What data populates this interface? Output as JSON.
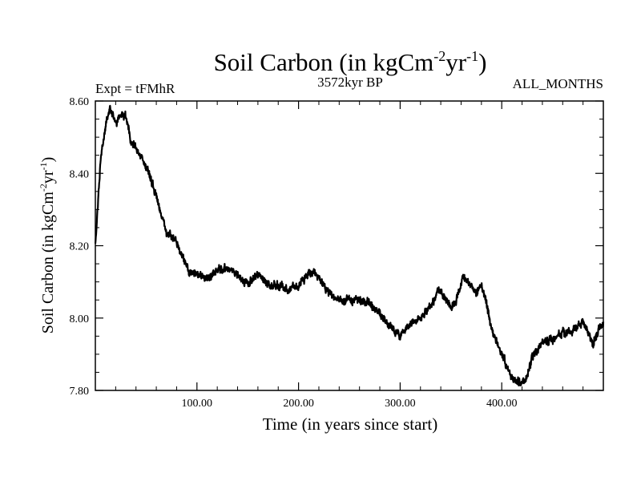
{
  "chart_data": {
    "type": "line",
    "title": "Soil Carbon (in kgCm",
    "title_exp1": "-2",
    "title_mid": "yr",
    "title_exp2": "-1",
    "title_end": ")",
    "subtitle_left": "Expt = tFMhR",
    "subtitle_center": "3572kyr BP",
    "subtitle_right": "ALL_MONTHS",
    "xlabel": "Time (in years since start)",
    "ylabel": "Soil Carbon (in kgCm",
    "ylabel_exp1": "-2",
    "ylabel_mid": "yr",
    "ylabel_exp2": "-1",
    "ylabel_end": ")",
    "xlim": [
      0,
      500
    ],
    "ylim": [
      7.8,
      8.6
    ],
    "x_ticks": [
      100,
      200,
      300,
      400
    ],
    "x_tick_labels": [
      "100.00",
      "200.00",
      "300.00",
      "400.00"
    ],
    "y_ticks": [
      7.8,
      8.0,
      8.2,
      8.4,
      8.6
    ],
    "y_tick_labels": [
      "7.80",
      "8.00",
      "8.20",
      "8.40",
      "8.60"
    ],
    "series": [
      {
        "name": "Soil Carbon",
        "color": "#000000",
        "x": [
          0,
          5,
          10,
          14,
          20,
          25,
          30,
          35,
          40,
          50,
          60,
          65,
          70,
          80,
          90,
          95,
          100,
          110,
          120,
          130,
          140,
          150,
          160,
          170,
          180,
          190,
          200,
          210,
          215,
          220,
          230,
          240,
          250,
          260,
          270,
          280,
          290,
          300,
          305,
          310,
          320,
          330,
          338,
          345,
          350,
          355,
          362,
          370,
          375,
          380,
          385,
          390,
          400,
          410,
          415,
          420,
          425,
          430,
          440,
          450,
          460,
          470,
          475,
          480,
          485,
          490,
          495,
          500
        ],
        "values": [
          8.2,
          8.43,
          8.53,
          8.58,
          8.54,
          8.56,
          8.56,
          8.49,
          8.47,
          8.42,
          8.34,
          8.28,
          8.24,
          8.21,
          8.14,
          8.12,
          8.12,
          8.11,
          8.13,
          8.14,
          8.12,
          8.09,
          8.12,
          8.09,
          8.09,
          8.08,
          8.09,
          8.12,
          8.13,
          8.11,
          8.07,
          8.05,
          8.05,
          8.05,
          8.04,
          8.01,
          7.98,
          7.95,
          7.97,
          7.99,
          8.0,
          8.03,
          8.08,
          8.05,
          8.03,
          8.05,
          8.12,
          8.09,
          8.07,
          8.09,
          8.04,
          7.97,
          7.9,
          7.84,
          7.82,
          7.82,
          7.84,
          7.89,
          7.93,
          7.94,
          7.96,
          7.96,
          7.98,
          7.99,
          7.96,
          7.93,
          7.97,
          7.98
        ]
      }
    ]
  }
}
